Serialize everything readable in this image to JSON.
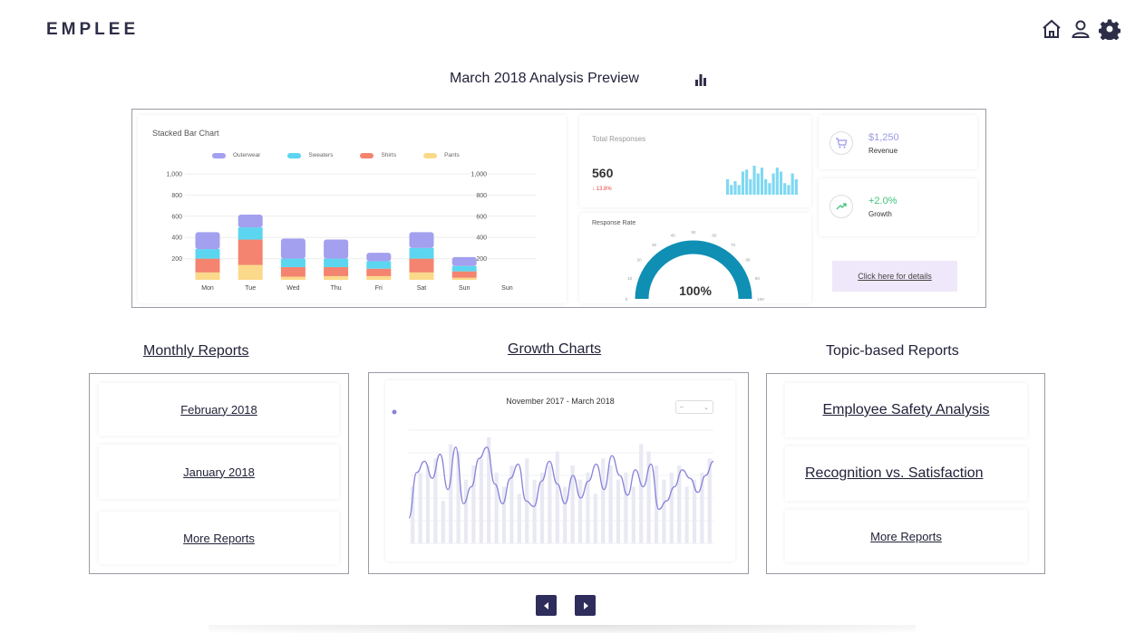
{
  "app": {
    "logo": "EMPLEE"
  },
  "header": {
    "icons": [
      "home-icon",
      "user-icon",
      "gear-icon"
    ]
  },
  "preview": {
    "title": "March 2018 Analysis Preview",
    "icon": "bar-chart-icon"
  },
  "chart_data": [
    {
      "type": "bar",
      "stacked": true,
      "title": "Stacked Bar Chart",
      "categories": [
        "Mon",
        "Tue",
        "Wed",
        "Thu",
        "Fri",
        "Sat",
        "Sun",
        "Sun"
      ],
      "series": [
        {
          "name": "Outerwear",
          "color": "#a2a0ef",
          "values": [
            160,
            120,
            190,
            180,
            80,
            150,
            85,
            0
          ]
        },
        {
          "name": "Sweaters",
          "color": "#5cd6f0",
          "values": [
            90,
            115,
            80,
            80,
            70,
            100,
            50,
            0
          ]
        },
        {
          "name": "Shirts",
          "color": "#f4846f",
          "values": [
            130,
            240,
            90,
            85,
            70,
            130,
            60,
            0
          ]
        },
        {
          "name": "Pants",
          "color": "#fbd98a",
          "values": [
            70,
            140,
            30,
            35,
            35,
            70,
            20,
            0
          ]
        }
      ],
      "yticks": [
        "1,000",
        "800",
        "600",
        "400",
        "200"
      ],
      "ylim": [
        0,
        1000
      ],
      "legend": "top"
    },
    {
      "type": "bar",
      "title": "Total Responses",
      "color": "#7fd8f2",
      "values": [
        8,
        5,
        7,
        5,
        12,
        13,
        8,
        15,
        11,
        14,
        8,
        6,
        11,
        14,
        12,
        6,
        5,
        11,
        8
      ]
    },
    {
      "type": "gauge",
      "title": "Response Rate",
      "value": 100,
      "ticks": [
        "0",
        "10",
        "20",
        "30",
        "40",
        "50",
        "60",
        "70",
        "80",
        "90",
        "100"
      ],
      "color": "#0f8fb4"
    },
    {
      "type": "line",
      "title": "November 2017 - March 2018",
      "line_color": "#8883d9",
      "bar_color": "#e8e9f3",
      "values": [
        18,
        50,
        58,
        46,
        63,
        38,
        68,
        28,
        40,
        60,
        68,
        42,
        28,
        46,
        56,
        30,
        26,
        44,
        58,
        42,
        28,
        48,
        32,
        44,
        56,
        38,
        62,
        48,
        34,
        52,
        40,
        56,
        24,
        30,
        40,
        52,
        46,
        36,
        48,
        58
      ],
      "bars": [
        40,
        50,
        55,
        60,
        30,
        70,
        65,
        45,
        55,
        60,
        75,
        50,
        40,
        55,
        35,
        60,
        45,
        50,
        55,
        65,
        40,
        55,
        45,
        50,
        35,
        60,
        55,
        45,
        50,
        40,
        70,
        65,
        55,
        45,
        50,
        55,
        40,
        45,
        50,
        60
      ]
    }
  ],
  "total_responses": {
    "label": "Total Responses",
    "value": "560",
    "delta": "13.8%",
    "delta_icon": "arrow-down-icon"
  },
  "response_rate": {
    "label": "Response Rate",
    "value": "100%"
  },
  "stats": {
    "revenue": {
      "value": "$1,250",
      "label": "Revenue",
      "icon": "cart-icon",
      "color": "#9a98e6"
    },
    "growth": {
      "value": "+2.0%",
      "label": "Growth",
      "icon": "trend-up-icon",
      "color": "#3fc37a"
    }
  },
  "details_button": "Click here for details",
  "monthly": {
    "title": "Monthly Reports",
    "items": [
      "February 2018",
      "January 2018",
      "More Reports"
    ]
  },
  "growth": {
    "title": "Growth Charts",
    "range": "November 2017 - March 2018"
  },
  "topic": {
    "title": "Topic-based Reports",
    "items": [
      "Employee Safety Analysis",
      "Recognition vs. Satisfaction",
      "More Reports"
    ]
  },
  "nav": {
    "prev_icon": "caret-left-icon",
    "next_icon": "caret-right-icon"
  }
}
